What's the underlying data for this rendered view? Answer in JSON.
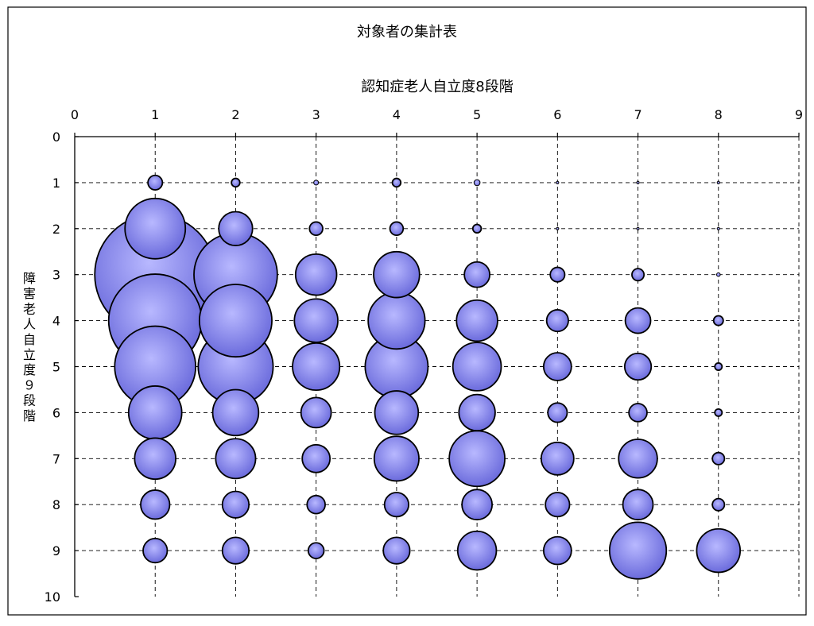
{
  "chart_data": {
    "type": "bubble",
    "title": "対象者の集計表",
    "xlabel": "認知症老人自立度8段階",
    "ylabel": "障害老人自立度９段階",
    "x_axis_position": "top",
    "y_axis_inverted": true,
    "xlim": [
      0,
      9
    ],
    "ylim": [
      0,
      10
    ],
    "x_ticks": [
      "0",
      "1",
      "2",
      "3",
      "4",
      "5",
      "6",
      "7",
      "8",
      "9"
    ],
    "y_ticks": [
      "0",
      "1",
      "2",
      "3",
      "4",
      "5",
      "6",
      "7",
      "8",
      "9",
      "10"
    ],
    "grid": true,
    "legend": "none",
    "bubble_size_unit": "relative bubble diameter (largest = 100)",
    "series": [
      {
        "points": [
          {
            "x": 1,
            "y": 1,
            "size": 12
          },
          {
            "x": 1,
            "y": 2,
            "size": 50
          },
          {
            "x": 1,
            "y": 3,
            "size": 100
          },
          {
            "x": 1,
            "y": 4,
            "size": 77
          },
          {
            "x": 1,
            "y": 5,
            "size": 67
          },
          {
            "x": 1,
            "y": 6,
            "size": 44
          },
          {
            "x": 1,
            "y": 7,
            "size": 34
          },
          {
            "x": 1,
            "y": 8,
            "size": 24
          },
          {
            "x": 1,
            "y": 9,
            "size": 20
          },
          {
            "x": 2,
            "y": 1,
            "size": 7
          },
          {
            "x": 2,
            "y": 2,
            "size": 28
          },
          {
            "x": 2,
            "y": 3,
            "size": 69
          },
          {
            "x": 2,
            "y": 4,
            "size": 60
          },
          {
            "x": 2,
            "y": 5,
            "size": 62
          },
          {
            "x": 2,
            "y": 6,
            "size": 38
          },
          {
            "x": 2,
            "y": 7,
            "size": 33
          },
          {
            "x": 2,
            "y": 8,
            "size": 22
          },
          {
            "x": 2,
            "y": 9,
            "size": 22
          },
          {
            "x": 3,
            "y": 1,
            "size": 4
          },
          {
            "x": 3,
            "y": 2,
            "size": 11
          },
          {
            "x": 3,
            "y": 3,
            "size": 34
          },
          {
            "x": 3,
            "y": 4,
            "size": 36
          },
          {
            "x": 3,
            "y": 5,
            "size": 39
          },
          {
            "x": 3,
            "y": 6,
            "size": 25
          },
          {
            "x": 3,
            "y": 7,
            "size": 23
          },
          {
            "x": 3,
            "y": 8,
            "size": 15
          },
          {
            "x": 3,
            "y": 9,
            "size": 13
          },
          {
            "x": 4,
            "y": 1,
            "size": 7
          },
          {
            "x": 4,
            "y": 2,
            "size": 11
          },
          {
            "x": 4,
            "y": 3,
            "size": 38
          },
          {
            "x": 4,
            "y": 4,
            "size": 47
          },
          {
            "x": 4,
            "y": 5,
            "size": 52
          },
          {
            "x": 4,
            "y": 6,
            "size": 36
          },
          {
            "x": 4,
            "y": 7,
            "size": 37
          },
          {
            "x": 4,
            "y": 8,
            "size": 20
          },
          {
            "x": 4,
            "y": 9,
            "size": 22
          },
          {
            "x": 5,
            "y": 1,
            "size": 5
          },
          {
            "x": 5,
            "y": 2,
            "size": 7
          },
          {
            "x": 5,
            "y": 3,
            "size": 21
          },
          {
            "x": 5,
            "y": 4,
            "size": 34
          },
          {
            "x": 5,
            "y": 5,
            "size": 40
          },
          {
            "x": 5,
            "y": 6,
            "size": 30
          },
          {
            "x": 5,
            "y": 7,
            "size": 46
          },
          {
            "x": 5,
            "y": 8,
            "size": 25
          },
          {
            "x": 5,
            "y": 9,
            "size": 32
          },
          {
            "x": 6,
            "y": 1,
            "size": 2
          },
          {
            "x": 6,
            "y": 2,
            "size": 2
          },
          {
            "x": 6,
            "y": 3,
            "size": 12
          },
          {
            "x": 6,
            "y": 4,
            "size": 18
          },
          {
            "x": 6,
            "y": 5,
            "size": 23
          },
          {
            "x": 6,
            "y": 6,
            "size": 16
          },
          {
            "x": 6,
            "y": 7,
            "size": 27
          },
          {
            "x": 6,
            "y": 8,
            "size": 20
          },
          {
            "x": 6,
            "y": 9,
            "size": 23
          },
          {
            "x": 7,
            "y": 1,
            "size": 0
          },
          {
            "x": 7,
            "y": 2,
            "size": 2
          },
          {
            "x": 7,
            "y": 3,
            "size": 10
          },
          {
            "x": 7,
            "y": 4,
            "size": 21
          },
          {
            "x": 7,
            "y": 5,
            "size": 22
          },
          {
            "x": 7,
            "y": 6,
            "size": 15
          },
          {
            "x": 7,
            "y": 7,
            "size": 32
          },
          {
            "x": 7,
            "y": 8,
            "size": 25
          },
          {
            "x": 7,
            "y": 9,
            "size": 47
          },
          {
            "x": 8,
            "y": 1,
            "size": 2
          },
          {
            "x": 8,
            "y": 2,
            "size": 0
          },
          {
            "x": 8,
            "y": 3,
            "size": 3
          },
          {
            "x": 8,
            "y": 4,
            "size": 8
          },
          {
            "x": 8,
            "y": 5,
            "size": 6
          },
          {
            "x": 8,
            "y": 6,
            "size": 6
          },
          {
            "x": 8,
            "y": 7,
            "size": 10
          },
          {
            "x": 8,
            "y": 8,
            "size": 10
          },
          {
            "x": 8,
            "y": 9,
            "size": 36
          }
        ]
      }
    ]
  },
  "style": {
    "bubble_fill_top": "#b8b8ff",
    "bubble_fill_bottom": "#6b6bdc",
    "bubble_stroke": "#000000",
    "grid_color": "#000000",
    "text_color": "#000000",
    "frame_color": "#000000"
  }
}
